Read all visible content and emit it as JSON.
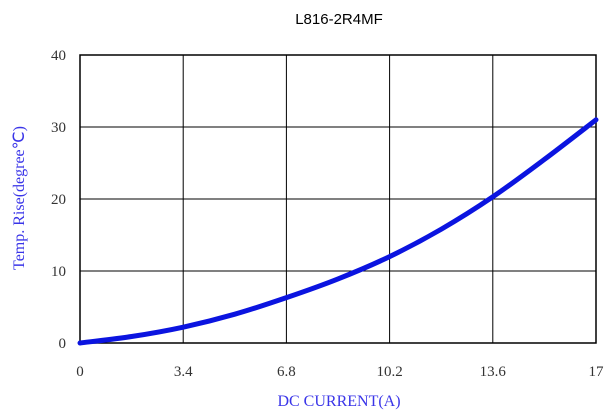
{
  "chart_data": {
    "type": "line",
    "title": "L816-2R4MF",
    "xlabel": "DC CURRENT(A)",
    "ylabel": "Temp. Rise(degree℃)",
    "xlim": [
      0,
      17
    ],
    "ylim": [
      0,
      40
    ],
    "x_ticks": [
      "0",
      "3.4",
      "6.8",
      "10.2",
      "13.6",
      "17"
    ],
    "y_ticks": [
      "0",
      "10",
      "20",
      "30",
      "40"
    ],
    "grid": true,
    "series": [
      {
        "x": [
          0,
          1.7,
          3.4,
          5.1,
          6.8,
          8.5,
          10.2,
          11.9,
          13.6,
          15.3,
          17
        ],
        "y": [
          0,
          0.9,
          2.2,
          4.0,
          6.3,
          8.9,
          12.0,
          15.8,
          20.3,
          25.5,
          31.0
        ]
      }
    ],
    "colors": {
      "line": "#0b14e0",
      "axis_label": "#3a35e8",
      "grid": "#000000"
    }
  }
}
